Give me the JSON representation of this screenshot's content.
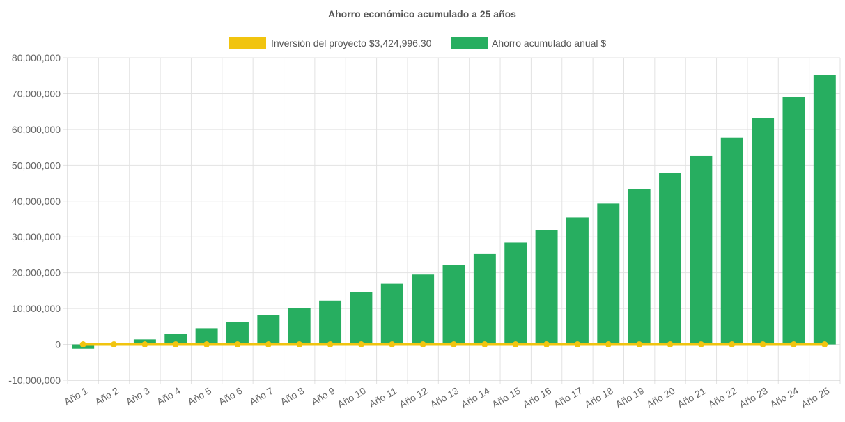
{
  "chart_data": {
    "type": "bar",
    "title": "Ahorro económico acumulado a 25 años",
    "categories": [
      "Año 1",
      "Año 2",
      "Año 3",
      "Año 4",
      "Año 5",
      "Año 6",
      "Año 7",
      "Año 8",
      "Año 9",
      "Año 10",
      "Año 11",
      "Año 12",
      "Año 13",
      "Año 14",
      "Año 15",
      "Año 16",
      "Año 17",
      "Año 18",
      "Año 19",
      "Año 20",
      "Año 21",
      "Año 22",
      "Año 23",
      "Año 24",
      "Año 25"
    ],
    "ylim": [
      -10000000,
      80000000
    ],
    "y_ticks": [
      80000000,
      70000000,
      60000000,
      50000000,
      40000000,
      30000000,
      20000000,
      10000000,
      0,
      -10000000
    ],
    "y_tick_labels": [
      "80,000,000",
      "70,000,000",
      "60,000,000",
      "50,000,000",
      "40,000,000",
      "30,000,000",
      "20,000,000",
      "10,000,000",
      "0",
      "-10,000,000"
    ],
    "grid": true,
    "legend_position": "top-center",
    "series": [
      {
        "name": "Inversión del proyecto $3,424,996.30",
        "type": "line",
        "color": "#f1c40f",
        "values": [
          0,
          0,
          0,
          0,
          0,
          0,
          0,
          0,
          0,
          0,
          0,
          0,
          0,
          0,
          0,
          0,
          0,
          0,
          0,
          0,
          0,
          0,
          0,
          0,
          0
        ]
      },
      {
        "name": "Ahorro acumulado anual $",
        "type": "bar",
        "color": "#27ae60",
        "values": [
          -1200000,
          0,
          1400000,
          2900000,
          4500000,
          6300000,
          8100000,
          10100000,
          12200000,
          14500000,
          16900000,
          19500000,
          22200000,
          25200000,
          28400000,
          31800000,
          35400000,
          39300000,
          43400000,
          47900000,
          52600000,
          57700000,
          63200000,
          69000000,
          75300000
        ]
      }
    ]
  }
}
